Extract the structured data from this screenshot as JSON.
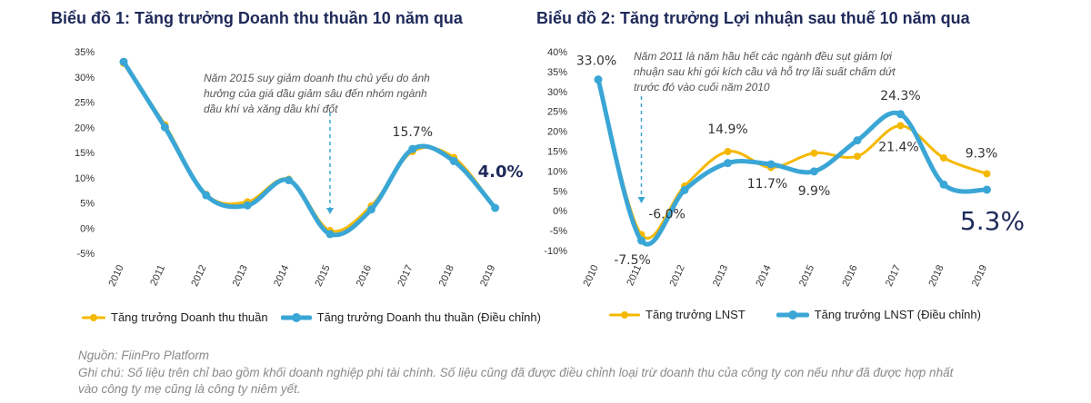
{
  "chart_data": [
    {
      "type": "line",
      "title": "Biểu đồ 1: Tăng trưởng Doanh thu thuần 10 năm qua",
      "x": [
        "2010",
        "2011",
        "2012",
        "2013",
        "2014",
        "2015",
        "2016",
        "2017",
        "2018",
        "2019"
      ],
      "y_ticks": [
        "35%",
        "30%",
        "25%",
        "20%",
        "15%",
        "10%",
        "5%",
        "0%",
        "-5%"
      ],
      "ylim": [
        -5,
        35
      ],
      "grid": false,
      "legend_position": "bottom",
      "series": [
        {
          "name": "Tăng trưởng Doanh thu thuần",
          "color": "#f5b800",
          "values": [
            32.7,
            20.5,
            6.7,
            5.2,
            9.7,
            -0.5,
            4.4,
            15.2,
            14.0,
            4.0
          ]
        },
        {
          "name": "Tăng trưởng Doanh thu thuần (Điều chỉnh)",
          "color": "#3aa6d6",
          "values": [
            33.0,
            20.0,
            6.5,
            4.5,
            9.5,
            -1.2,
            3.7,
            15.7,
            13.3,
            4.0
          ]
        }
      ],
      "data_labels": [
        {
          "text": "15.7%",
          "x_index": 7,
          "y": 15.7,
          "size": "medium",
          "dx": 0,
          "dy": -14
        },
        {
          "text": "4.0%",
          "x_index": 9,
          "y": 4.0,
          "size": "large",
          "dx": 6,
          "dy": -34
        }
      ],
      "annotation": {
        "lines": [
          "Năm 2015 suy giảm doanh thu chủ yếu do ảnh",
          "hưởng của giá dầu giảm sâu đến nhóm ngành",
          "dầu khí và xăng dầu khí đốt"
        ],
        "x_index": 5
      }
    },
    {
      "type": "line",
      "title": "Biểu đồ 2: Tăng trưởng Lợi nhuận sau thuế 10 năm qua",
      "x": [
        "2010",
        "2011",
        "2012",
        "2013",
        "2014",
        "2015",
        "2016",
        "2017",
        "2018",
        "2019"
      ],
      "y_ticks": [
        "40%",
        "35%",
        "30%",
        "25%",
        "20%",
        "15%",
        "10%",
        "5%",
        "0%",
        "-5%",
        "-10%"
      ],
      "ylim": [
        -10,
        40
      ],
      "grid": false,
      "legend_position": "bottom",
      "series": [
        {
          "name": "Tăng trưởng LNST",
          "color": "#f5b800",
          "values": [
            33.0,
            -6.0,
            6.2,
            14.9,
            10.9,
            14.5,
            13.7,
            21.4,
            13.3,
            9.3
          ]
        },
        {
          "name": "Tăng trưởng LNST (Điều chỉnh)",
          "color": "#3aa6d6",
          "values": [
            33.0,
            -7.5,
            5.2,
            12.0,
            11.7,
            9.9,
            17.7,
            24.3,
            6.6,
            5.3
          ]
        }
      ],
      "data_labels": [
        {
          "text": "33.0%",
          "x_index": 0,
          "y": 33.0,
          "size": "medium",
          "dx": -2,
          "dy": -16
        },
        {
          "text": "-6.0%",
          "x_index": 1,
          "y": -6.0,
          "size": "medium",
          "dx": 28,
          "dy": -18
        },
        {
          "text": "-7.5%",
          "x_index": 1,
          "y": -7.5,
          "size": "medium",
          "dx": -10,
          "dy": 26
        },
        {
          "text": "14.9%",
          "x_index": 3,
          "y": 14.9,
          "size": "medium",
          "dx": 0,
          "dy": -20
        },
        {
          "text": "11.7%",
          "x_index": 4,
          "y": 11.7,
          "size": "medium",
          "dx": -4,
          "dy": 26
        },
        {
          "text": "9.9%",
          "x_index": 5,
          "y": 9.9,
          "size": "medium",
          "dx": 0,
          "dy": 26
        },
        {
          "text": "24.3%",
          "x_index": 7,
          "y": 24.3,
          "size": "medium",
          "dx": 0,
          "dy": -16
        },
        {
          "text": "21.4%",
          "x_index": 7,
          "y": 21.4,
          "size": "medium",
          "dx": -2,
          "dy": 28
        },
        {
          "text": "9.3%",
          "x_index": 9,
          "y": 9.3,
          "size": "medium",
          "dx": -6,
          "dy": -18
        },
        {
          "text": "5.3%",
          "x_index": 9,
          "y": 5.3,
          "size": "xlarge",
          "dx": 6,
          "dy": 44
        }
      ],
      "annotation": {
        "lines": [
          "Năm 2011 là năm hầu hết các ngành đều sụt giảm lợi",
          "nhuận sau khi gói kích cầu và hỗ trợ lãi suất chấm dứt",
          "trước đó vào cuối năm 2010"
        ],
        "x_index": 1
      }
    }
  ],
  "footer": {
    "source": "Nguồn: FiinPro Platform",
    "note_line1": "Ghi chú: Số liệu trên chỉ bao gồm khối doanh nghiệp phi tài chính. Số liệu cũng đã được điều chỉnh loại trừ doanh thu của công ty con nếu như đã được hợp nhất",
    "note_line2": "vào công ty mẹ cũng là công ty niêm yết."
  }
}
